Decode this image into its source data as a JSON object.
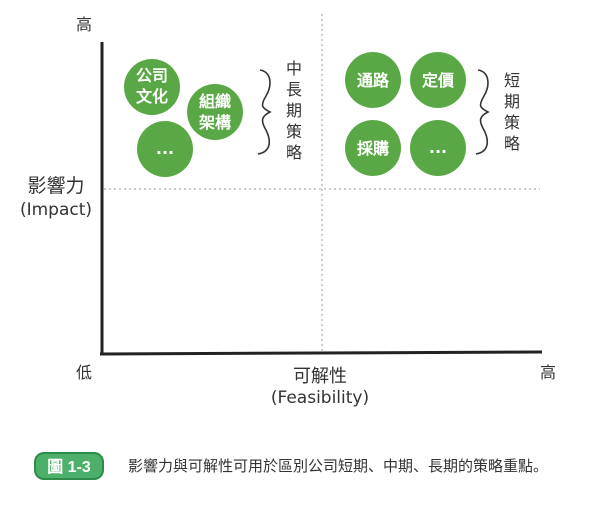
{
  "axes": {
    "y_high": "高",
    "y_title": "影響力",
    "y_title_en": "(Impact)",
    "x_low": "低",
    "x_high": "高",
    "x_title": "可解性",
    "x_title_en": "(Feasibility)"
  },
  "left_group": {
    "circles": [
      "公司\n文化",
      "組織\n架構",
      "..."
    ],
    "bracket_label": "中長期策略"
  },
  "right_group": {
    "circles": [
      "通路",
      "定價",
      "採購",
      "..."
    ],
    "bracket_label": "短期策略"
  },
  "colors": {
    "circle_green": "#5aa845",
    "axis": "#222222",
    "dashed": "#999999",
    "badge_green": "#4caf6a"
  },
  "caption": {
    "badge": "圖 1-3",
    "text": "影響力與可解性可用於區別公司短期、中期、長期的策略重點。"
  }
}
